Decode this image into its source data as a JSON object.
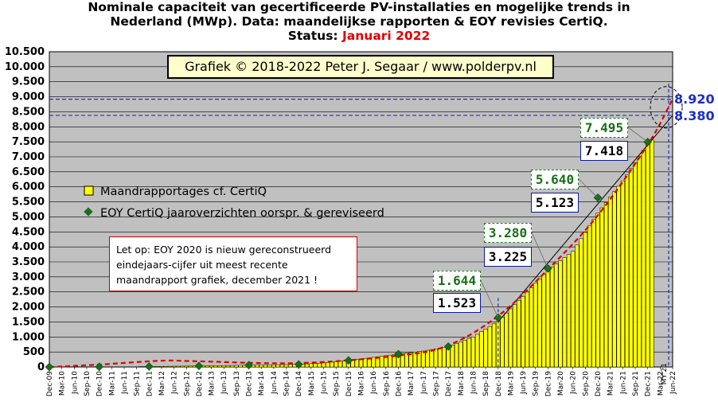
{
  "title": {
    "line1": "Nominale  capaciteit  van gecertificeerde  PV-installaties  en mogelijke  trends in",
    "line2": "Nederland (MWp). Data: maandelijkse  rapporten & EOY revisies  CertiQ.",
    "status_label": "Status:",
    "status_value": "Januari 2022"
  },
  "copyright": "Grafiek © 2018-2022 Peter J. Segaar / www.polderpv.nl",
  "note": {
    "line1": "Let op: EOY 2020 is nieuw gereconstrueerd",
    "line2": "eindejaars-cijfer uit meest recente",
    "line3": "maandrapport  grafiek, december 2021 !"
  },
  "annotations": {
    "eoy_2018_revised": "1.644",
    "eoy_2018_original": "1.523",
    "eoy_2019_revised": "3.280",
    "eoy_2019_original": "3.225",
    "eoy_2020_revised": "5.640",
    "eoy_2020_original": "5.123",
    "eoy_2021_revised": "7.495",
    "eoy_2021_original": "7.418",
    "projection_high": "8.920",
    "projection_low": "8.380",
    "my21_label": "MY'21"
  },
  "colors": {
    "plot_background": "#c0c0c0",
    "bar_fill": "#ffff00",
    "bar_stroke": "#000000",
    "eoy_marker": "#1a6e1a",
    "trend_red": "#e00000",
    "projection_blue": "#1c2fc9",
    "title_status": "#e00000"
  },
  "chart_data": {
    "type": "bar",
    "title": "Nominale capaciteit van gecertificeerde PV-installaties en mogelijke trends in Nederland (MWp). Data: maandelijkse rapporten & EOY revisies CertiQ. Status: Januari 2022",
    "ylabel": "",
    "xlabel": "",
    "ylim": [
      0,
      10500
    ],
    "yticks": [
      0,
      500,
      1000,
      1500,
      2000,
      2500,
      3000,
      3500,
      4000,
      4500,
      5000,
      5500,
      6000,
      6500,
      7000,
      7500,
      8000,
      8500,
      9000,
      9500,
      10000,
      10500
    ],
    "ytick_labels": [
      "0",
      "500",
      "1.000",
      "1.500",
      "2.000",
      "2.500",
      "3.000",
      "3.500",
      "4.000",
      "4.500",
      "5.000",
      "5.500",
      "6.000",
      "6.500",
      "7.000",
      "7.500",
      "8.000",
      "8.500",
      "9.000",
      "9.500",
      "10.000",
      "10.500"
    ],
    "x_start": "Dec-09",
    "x_end": "Jun-22",
    "xtick_labels": [
      "Dec-09",
      "Mar-10",
      "Jun-10",
      "Sep-10",
      "Dec-10",
      "Mar-11",
      "Jun-11",
      "Sep-11",
      "Dec-11",
      "Mar-12",
      "Jun-12",
      "Sep-12",
      "Dec-12",
      "Mar-13",
      "Jun-13",
      "Sep-13",
      "Dec-13",
      "Mar-14",
      "Jun-14",
      "Sep-14",
      "Dec-14",
      "Mar-15",
      "Jun-15",
      "Sep-15",
      "Dec-15",
      "Mar-16",
      "Jun-16",
      "Sep-16",
      "Dec-16",
      "Mar-17",
      "Jun-17",
      "Sep-17",
      "Dec-17",
      "Mar-18",
      "Jun-18",
      "Sep-18",
      "Dec-18",
      "Mar-19",
      "Jun-19",
      "Sep-19",
      "Dec-19",
      "Mar-20",
      "Jun-20",
      "Sep-20",
      "Dec-20",
      "Mar-21",
      "Jun-21",
      "Sep-21",
      "Dec-21",
      "Mar-22",
      "Jun-22"
    ],
    "grid": true,
    "legend_placement": "left",
    "series": [
      {
        "name": "Maandrapportages cf. CertiQ",
        "kind": "monthly_bars",
        "anchors": [
          [
            "Dec-09",
            0
          ],
          [
            "Dec-10",
            5
          ],
          [
            "Dec-11",
            15
          ],
          [
            "Dec-12",
            35
          ],
          [
            "Dec-13",
            60
          ],
          [
            "Dec-14",
            85
          ],
          [
            "Jun-15",
            135
          ],
          [
            "Dec-15",
            220
          ],
          [
            "Jun-16",
            320
          ],
          [
            "Dec-16",
            430
          ],
          [
            "Jun-17",
            530
          ],
          [
            "Dec-17",
            680
          ],
          [
            "Jun-18",
            1000
          ],
          [
            "Dec-18",
            1523
          ],
          [
            "Jun-19",
            2350
          ],
          [
            "Dec-19",
            3225
          ],
          [
            "Jun-20",
            3850
          ],
          [
            "Dec-20",
            5123
          ],
          [
            "Jun-21",
            6200
          ],
          [
            "Dec-21",
            7418
          ],
          [
            "Jan-22",
            7560
          ]
        ]
      },
      {
        "name": "EOY CertiQ jaaroverzichten oorspr. & gereviseerd",
        "kind": "markers",
        "points": [
          [
            "Dec-09",
            0
          ],
          [
            "Dec-10",
            4
          ],
          [
            "Dec-11",
            14
          ],
          [
            "Dec-12",
            35
          ],
          [
            "Dec-13",
            60
          ],
          [
            "Dec-14",
            85
          ],
          [
            "Dec-15",
            220
          ],
          [
            "Dec-16",
            430
          ],
          [
            "Dec-17",
            680
          ],
          [
            "Dec-18",
            1644
          ],
          [
            "Dec-19",
            3280
          ],
          [
            "Dec-20",
            5640
          ],
          [
            "Dec-21",
            7495
          ]
        ]
      }
    ],
    "trend_lines": [
      {
        "kind": "red_dashed",
        "points": [
          [
            "Dec-09",
            0
          ],
          [
            "Dec-10",
            80
          ],
          [
            "Mar-12",
            210
          ],
          [
            "Dec-12",
            190
          ],
          [
            "Dec-14",
            130
          ],
          [
            "Dec-16",
            380
          ],
          [
            "Dec-17",
            720
          ],
          [
            "Dec-18",
            1700
          ],
          [
            "Dec-19",
            3250
          ],
          [
            "Dec-20",
            5050
          ],
          [
            "Dec-21",
            7400
          ],
          [
            "Jun-22",
            8920
          ]
        ]
      },
      {
        "kind": "black_linear",
        "points": [
          [
            "Dec-18",
            1500
          ],
          [
            "Jun-22",
            8380
          ]
        ]
      }
    ],
    "projections": [
      {
        "label": "8.920",
        "value": 8920
      },
      {
        "label": "8.380",
        "value": 8380
      }
    ]
  }
}
